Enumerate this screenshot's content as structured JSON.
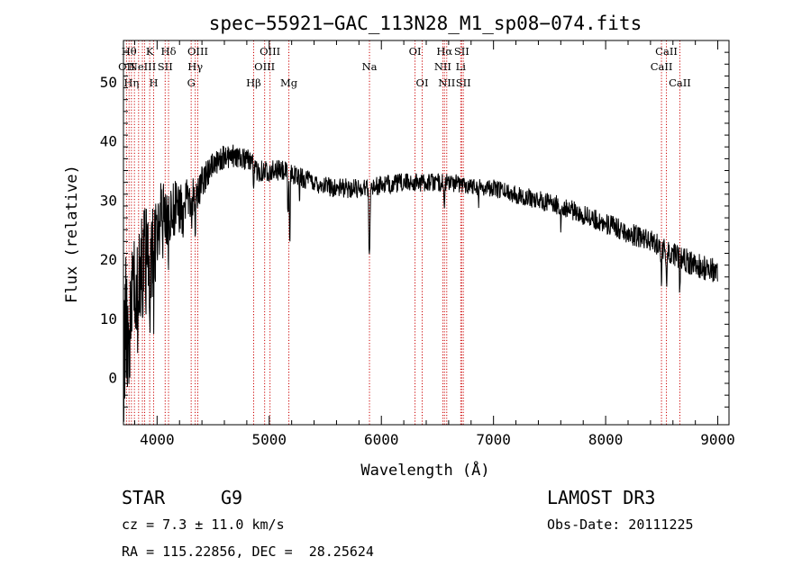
{
  "chart_data": {
    "type": "line",
    "title": "spec−55921−GAC_113N28_M1_sp08−074.fits",
    "xlabel": "Wavelength (Å)",
    "ylabel": "Flux (relative)",
    "xlim": [
      3700,
      9100
    ],
    "ylim": [
      -8,
      57
    ],
    "xticks": [
      4000,
      5000,
      6000,
      7000,
      8000,
      9000
    ],
    "xtick_labels": [
      "4000",
      "5000",
      "6000",
      "7000",
      "8000",
      "9000"
    ],
    "yticks": [
      0,
      10,
      20,
      30,
      40,
      50
    ],
    "ytick_labels": [
      "0",
      "10",
      "20",
      "30",
      "40",
      "50"
    ],
    "grid": false,
    "continuum": {
      "x": [
        3700,
        3750,
        3800,
        3850,
        3900,
        3950,
        4000,
        4050,
        4100,
        4150,
        4200,
        4250,
        4300,
        4350,
        4400,
        4500,
        4600,
        4700,
        4800,
        4900,
        5000,
        5100,
        5200,
        5400,
        5600,
        5800,
        6000,
        6200,
        6400,
        6600,
        6800,
        7000,
        7200,
        7400,
        7600,
        7800,
        8000,
        8200,
        8400,
        8600,
        8800,
        9000
      ],
      "y": [
        5,
        10,
        14,
        17,
        20,
        22,
        25,
        27,
        28,
        28.5,
        29,
        29.5,
        30,
        31,
        33,
        36,
        37.5,
        37.5,
        37,
        35,
        35,
        35,
        34.5,
        33,
        32,
        32,
        32.5,
        33,
        33,
        33,
        32.5,
        32,
        31,
        30,
        29,
        27.5,
        26,
        24.5,
        23,
        21,
        19,
        18
      ]
    },
    "noise": {
      "x": [
        3700,
        3900,
        4100,
        4300,
        4500,
        5000,
        6000,
        7000,
        8000,
        9000
      ],
      "amp": [
        14,
        10,
        6,
        3.5,
        2.2,
        1.8,
        1.6,
        1.5,
        1.8,
        2.2
      ]
    },
    "absorption_lines": [
      {
        "x": 3934,
        "depth": 10
      },
      {
        "x": 3969,
        "depth": 10
      },
      {
        "x": 4101,
        "depth": 6
      },
      {
        "x": 4226,
        "depth": 4
      },
      {
        "x": 4308,
        "depth": 6
      },
      {
        "x": 4340,
        "depth": 5
      },
      {
        "x": 4861,
        "depth": 5
      },
      {
        "x": 5167,
        "depth": 8
      },
      {
        "x": 5183,
        "depth": 12
      },
      {
        "x": 5270,
        "depth": 3
      },
      {
        "x": 5890,
        "depth": 9
      },
      {
        "x": 5896,
        "depth": 9
      },
      {
        "x": 6563,
        "depth": 5
      },
      {
        "x": 6867,
        "depth": 3
      },
      {
        "x": 7600,
        "depth": 4
      },
      {
        "x": 8498,
        "depth": 5
      },
      {
        "x": 8542,
        "depth": 7
      },
      {
        "x": 8662,
        "depth": 6
      }
    ],
    "spectral_lines": [
      {
        "x": 3727,
        "label": "OII",
        "row": 1
      },
      {
        "x": 3750,
        "label": "Hθ",
        "row": 0
      },
      {
        "x": 3771,
        "label": "Hη",
        "row": 2
      },
      {
        "x": 3798,
        "label": "",
        "row": 0
      },
      {
        "x": 3835,
        "label": "",
        "row": 0
      },
      {
        "x": 3869,
        "label": "NeIII",
        "row": 1
      },
      {
        "x": 3889,
        "label": "",
        "row": 0
      },
      {
        "x": 3934,
        "label": "K",
        "row": 0
      },
      {
        "x": 3969,
        "label": "H",
        "row": 2
      },
      {
        "x": 4072,
        "label": "SII",
        "row": 1
      },
      {
        "x": 4102,
        "label": "Hδ",
        "row": 0
      },
      {
        "x": 4304,
        "label": "G",
        "row": 2
      },
      {
        "x": 4340,
        "label": "Hγ",
        "row": 1
      },
      {
        "x": 4363,
        "label": "OIII",
        "row": 0
      },
      {
        "x": 4861,
        "label": "Hβ",
        "row": 2
      },
      {
        "x": 4959,
        "label": "OIII",
        "row": 1
      },
      {
        "x": 5007,
        "label": "OIII",
        "row": 0
      },
      {
        "x": 5175,
        "label": "Mg",
        "row": 2
      },
      {
        "x": 5894,
        "label": "Na",
        "row": 1
      },
      {
        "x": 6300,
        "label": "OI",
        "row": 0
      },
      {
        "x": 6364,
        "label": "OI",
        "row": 2
      },
      {
        "x": 6548,
        "label": "NII",
        "row": 1
      },
      {
        "x": 6563,
        "label": "Hα",
        "row": 0
      },
      {
        "x": 6583,
        "label": "NII",
        "row": 2
      },
      {
        "x": 6708,
        "label": "Li",
        "row": 1
      },
      {
        "x": 6716,
        "label": "SII",
        "row": 0
      },
      {
        "x": 6731,
        "label": "SII",
        "row": 2
      },
      {
        "x": 8498,
        "label": "CaII",
        "row": 1
      },
      {
        "x": 8542,
        "label": "CaII",
        "row": 0
      },
      {
        "x": 8662,
        "label": "CaII",
        "row": 2
      }
    ],
    "colors": {
      "spectrum": "#000000",
      "lines": "#cc0000",
      "axes": "#000000"
    }
  },
  "info": {
    "class": "STAR",
    "subclass": "G9",
    "redshift": "cz = 7.3 ± 11.0 km/s",
    "coords": "RA = 115.22856, DEC =  28.25624",
    "survey": "LAMOST DR3",
    "obs_date": "Obs-Date: 20111225"
  }
}
